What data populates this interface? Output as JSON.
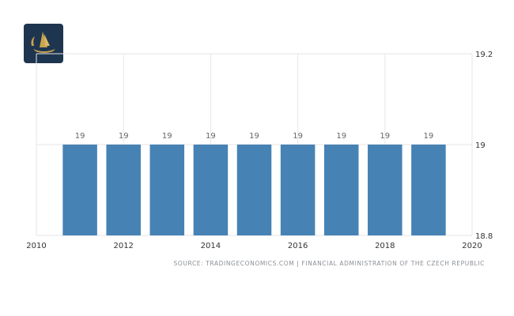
{
  "source_text": "SOURCE: TRADINGECONOMICS.COM | FINANCIAL ADMINISTRATION OF THE CZECH REPUBLIC",
  "logo": {
    "icon": "sailboat-logo-icon",
    "background": "#1e3550",
    "accent": "#c9a44c"
  },
  "colors": {
    "bar": "#4682b4",
    "grid": "#e6e6e6"
  },
  "chart_data": {
    "type": "bar",
    "title": "",
    "xlabel": "",
    "ylabel": "",
    "x": [
      2011,
      2012,
      2013,
      2014,
      2015,
      2016,
      2017,
      2018,
      2019
    ],
    "values": [
      19,
      19,
      19,
      19,
      19,
      19,
      19,
      19,
      19
    ],
    "data_labels": [
      "19",
      "19",
      "19",
      "19",
      "19",
      "19",
      "19",
      "19",
      "19"
    ],
    "xlim": [
      2010,
      2020
    ],
    "ylim": [
      18.8,
      19.2
    ],
    "x_ticks": [
      "2010",
      "2012",
      "2014",
      "2016",
      "2018",
      "2020"
    ],
    "y_ticks": [
      "19.2",
      "19",
      "18.8"
    ],
    "y_axis_position": "right",
    "grid": true,
    "legend": "none"
  }
}
